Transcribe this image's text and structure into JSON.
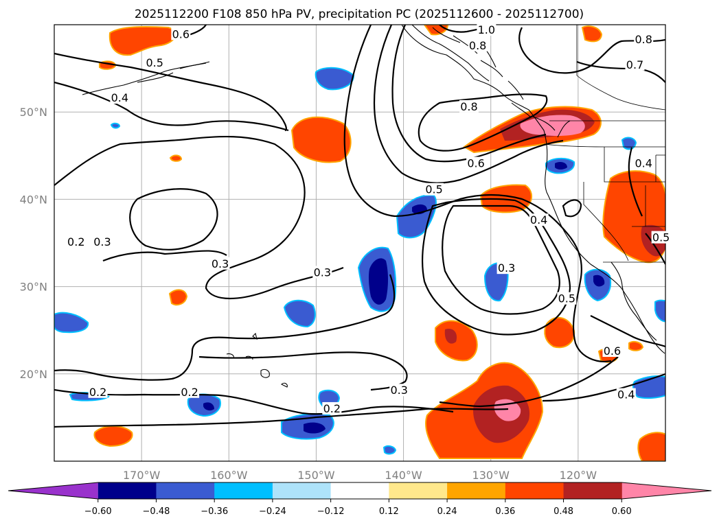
{
  "chart_data": {
    "type": "contour_map",
    "title": "2025112200 F108 850 hPa PV, precipitation PC (2025112600 - 2025112700)",
    "xlim": [
      -180,
      -110
    ],
    "ylim": [
      10,
      60
    ],
    "x_ticks": [
      {
        "value": -170,
        "label": "170°W"
      },
      {
        "value": -160,
        "label": "160°W"
      },
      {
        "value": -150,
        "label": "150°W"
      },
      {
        "value": -140,
        "label": "140°W"
      },
      {
        "value": -130,
        "label": "130°W"
      },
      {
        "value": -120,
        "label": "120°W"
      }
    ],
    "y_ticks": [
      {
        "value": 20,
        "label": "20°N"
      },
      {
        "value": 30,
        "label": "30°N"
      },
      {
        "value": 40,
        "label": "40°N"
      },
      {
        "value": 50,
        "label": "50°N"
      }
    ],
    "grid": true,
    "colorbar": {
      "orientation": "horizontal",
      "extend": "both",
      "levels": [
        -0.6,
        -0.48,
        -0.36,
        -0.24,
        -0.12,
        0.12,
        0.24,
        0.36,
        0.48,
        0.6
      ],
      "tick_labels": [
        "−0.60",
        "−0.48",
        "−0.36",
        "−0.24",
        "−0.12",
        "0.12",
        "0.24",
        "0.36",
        "0.48",
        "0.60"
      ],
      "colors": [
        "#9932cc",
        "#00008b",
        "#3a5bd1",
        "#00bfff",
        "#aee3fa",
        "#ffffff",
        "#ffe88c",
        "#ffa500",
        "#ff4500",
        "#b22222",
        "#ff85a8"
      ]
    },
    "contour_labels": [
      {
        "text": "1.0",
        "lon": -130.5,
        "lat": 59.3
      },
      {
        "text": "0.8",
        "lon": -131.5,
        "lat": 57.5
      },
      {
        "text": "0.8",
        "lon": -112.5,
        "lat": 58.2
      },
      {
        "text": "0.7",
        "lon": -113.5,
        "lat": 55.3
      },
      {
        "text": "0.6",
        "lon": -165.5,
        "lat": 58.8
      },
      {
        "text": "0.5",
        "lon": -168.5,
        "lat": 55.5
      },
      {
        "text": "0.4",
        "lon": -172.5,
        "lat": 51.5
      },
      {
        "text": "0.8",
        "lon": -132.5,
        "lat": 50.5
      },
      {
        "text": "0.6",
        "lon": -131.7,
        "lat": 44.0
      },
      {
        "text": "0.5",
        "lon": -136.5,
        "lat": 41.0
      },
      {
        "text": "0.4",
        "lon": -112.5,
        "lat": 44.0
      },
      {
        "text": "0.4",
        "lon": -124.5,
        "lat": 37.5
      },
      {
        "text": "0.3",
        "lon": -128.2,
        "lat": 32.0
      },
      {
        "text": "0.5",
        "lon": -121.3,
        "lat": 28.5
      },
      {
        "text": "0.5",
        "lon": -110.5,
        "lat": 35.5
      },
      {
        "text": "0.6",
        "lon": -116.1,
        "lat": 22.5
      },
      {
        "text": "0.4",
        "lon": -114.5,
        "lat": 17.5
      },
      {
        "text": "0.3",
        "lon": -174.5,
        "lat": 35.0
      },
      {
        "text": "0.2",
        "lon": -177.5,
        "lat": 35.0
      },
      {
        "text": "0.3",
        "lon": -161.0,
        "lat": 32.5
      },
      {
        "text": "0.3",
        "lon": -149.3,
        "lat": 31.5
      },
      {
        "text": "0.3",
        "lon": -140.5,
        "lat": 18.0
      },
      {
        "text": "0.2",
        "lon": -175.0,
        "lat": 17.8
      },
      {
        "text": "0.2",
        "lon": -164.5,
        "lat": 17.8
      },
      {
        "text": "0.2",
        "lon": -148.2,
        "lat": 15.9
      }
    ]
  }
}
